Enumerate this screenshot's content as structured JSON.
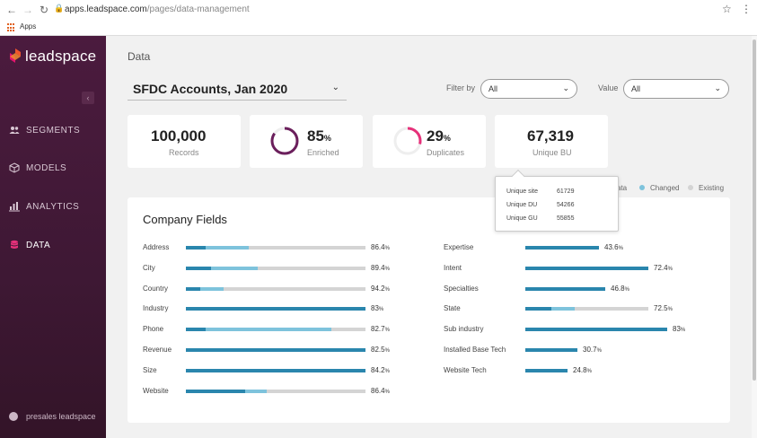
{
  "browser": {
    "url_host": "apps.leadspace.com",
    "url_path": "/pages/data-management",
    "bookmarks_label": "Apps"
  },
  "sidebar": {
    "brand": "leadspace",
    "items": [
      {
        "label": "SEGMENTS",
        "icon": "people-icon"
      },
      {
        "label": "MODELS",
        "icon": "cube-icon"
      },
      {
        "label": "ANALYTICS",
        "icon": "bar-chart-icon"
      },
      {
        "label": "DATA",
        "icon": "database-icon"
      }
    ],
    "user": "presales leadspace"
  },
  "main": {
    "page_title": "Data",
    "dataset": "SFDC Accounts, Jan 2020",
    "filter_by_label": "Filter by",
    "filter_by_value": "All",
    "value_label": "Value",
    "value_value": "All"
  },
  "stats": {
    "records": {
      "value": "100,000",
      "label": "Records"
    },
    "enriched": {
      "value": "85",
      "unit": "%",
      "label": "Enriched",
      "fraction": 0.85
    },
    "duplicates": {
      "value": "29",
      "unit": "%",
      "label": "Duplicates",
      "fraction": 0.29
    },
    "unique_bu": {
      "value": "67,319",
      "label": "Unique BU"
    }
  },
  "tooltip": {
    "rows": [
      {
        "key": "Unique site",
        "value": "61729"
      },
      {
        "key": "Unique DU",
        "value": "54266"
      },
      {
        "key": "Unique GU",
        "value": "55855"
      }
    ]
  },
  "legend": {
    "partial": "ata",
    "changed": "Changed",
    "existing": "Existing"
  },
  "colors": {
    "new": "#2a86ad",
    "changed": "#7ec3dc",
    "existing": "#d4d4d4",
    "enriched_ring": "#6b1f5c",
    "duplicates_ring": "#e6317a"
  },
  "company_fields": {
    "title": "Company Fields",
    "left": [
      {
        "label": "Address",
        "value": "86.4",
        "new": 0.11,
        "changed": 0.35,
        "total": 1.0
      },
      {
        "label": "City",
        "value": "89.4",
        "new": 0.14,
        "changed": 0.4,
        "total": 1.0
      },
      {
        "label": "Country",
        "value": "94.2",
        "new": 0.08,
        "changed": 0.21,
        "total": 1.0
      },
      {
        "label": "Industry",
        "value": "83",
        "new": 1.0,
        "changed": 1.0,
        "total": 1.0
      },
      {
        "label": "Phone",
        "value": "82.7",
        "new": 0.11,
        "changed": 0.81,
        "total": 1.0
      },
      {
        "label": "Revenue",
        "value": "82.5",
        "new": 1.0,
        "changed": 1.0,
        "total": 1.0
      },
      {
        "label": "Size",
        "value": "84.2",
        "new": 1.0,
        "changed": 1.0,
        "total": 1.0
      },
      {
        "label": "Website",
        "value": "86.4",
        "new": 0.33,
        "changed": 0.45,
        "total": 1.0
      }
    ],
    "right": [
      {
        "label": "Expertise",
        "value": "43.6",
        "new": 1.0,
        "changed": 1.0,
        "total": 0.6
      },
      {
        "label": "Intent",
        "value": "72.4",
        "new": 1.0,
        "changed": 1.0,
        "total": 1.0
      },
      {
        "label": "Specialties",
        "value": "46.8",
        "new": 1.0,
        "changed": 1.0,
        "total": 0.65
      },
      {
        "label": "State",
        "value": "72.5",
        "new": 0.21,
        "changed": 0.4,
        "total": 1.0
      },
      {
        "label": "Sub industry",
        "value": "83",
        "new": 1.0,
        "changed": 1.0,
        "total": 1.15
      },
      {
        "label": "Installed Base Tech",
        "value": "30.7",
        "new": 1.0,
        "changed": 1.0,
        "total": 0.42
      },
      {
        "label": "Website Tech",
        "value": "24.8",
        "new": 1.0,
        "changed": 1.0,
        "total": 0.34
      }
    ],
    "unit": "%"
  }
}
